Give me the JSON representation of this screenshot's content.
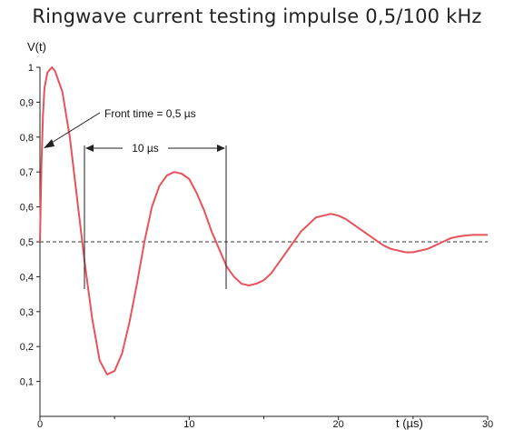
{
  "chart_data": {
    "type": "line",
    "title": "Ringwave current testing impulse 0,5/100 kHz",
    "ylabel": "V(t)",
    "xlabel": "t (µs)",
    "xlim": [
      0,
      30
    ],
    "ylim": [
      0,
      1
    ],
    "x_ticks": [
      "0",
      "10",
      "20",
      "30"
    ],
    "y_ticks": [
      "0,1",
      "0,2",
      "0,3",
      "0,4",
      "0,5",
      "0,6",
      "0,7",
      "0,8",
      "0,9",
      "1"
    ],
    "reference_line": {
      "y": 0.5,
      "style": "dashed"
    },
    "series": [
      {
        "color": "#e8525a",
        "x": [
          0,
          0.1,
          0.2,
          0.3,
          0.5,
          0.8,
          1.0,
          1.5,
          2.0,
          2.5,
          3.0,
          3.5,
          4.0,
          4.5,
          5.0,
          5.5,
          6.0,
          6.5,
          7.0,
          7.5,
          8.0,
          8.5,
          9.0,
          9.5,
          10.0,
          10.5,
          11.0,
          11.5,
          12.0,
          12.5,
          13.0,
          13.5,
          14.0,
          14.5,
          15.0,
          15.5,
          16.0,
          16.5,
          17.0,
          17.5,
          18.0,
          18.5,
          19.0,
          19.5,
          20.0,
          20.5,
          21.0,
          21.5,
          22.0,
          22.5,
          23.0,
          23.5,
          24.0,
          24.5,
          25.0,
          25.5,
          26.0,
          26.5,
          27.0,
          27.5,
          28.0,
          28.5,
          29.0,
          29.5,
          30.0
        ],
        "y": [
          0.5,
          0.72,
          0.86,
          0.94,
          0.985,
          1.0,
          0.99,
          0.93,
          0.8,
          0.62,
          0.44,
          0.28,
          0.16,
          0.12,
          0.13,
          0.18,
          0.27,
          0.38,
          0.5,
          0.6,
          0.66,
          0.69,
          0.7,
          0.695,
          0.68,
          0.64,
          0.59,
          0.53,
          0.48,
          0.43,
          0.4,
          0.38,
          0.375,
          0.38,
          0.39,
          0.41,
          0.44,
          0.47,
          0.5,
          0.53,
          0.55,
          0.57,
          0.575,
          0.58,
          0.575,
          0.565,
          0.55,
          0.535,
          0.52,
          0.505,
          0.49,
          0.48,
          0.475,
          0.47,
          0.47,
          0.475,
          0.48,
          0.49,
          0.5,
          0.51,
          0.515,
          0.518,
          0.52,
          0.52,
          0.52
        ]
      }
    ],
    "annotations": [
      {
        "text": "Front time = 0,5 µs"
      },
      {
        "text": "10 µs"
      }
    ]
  }
}
